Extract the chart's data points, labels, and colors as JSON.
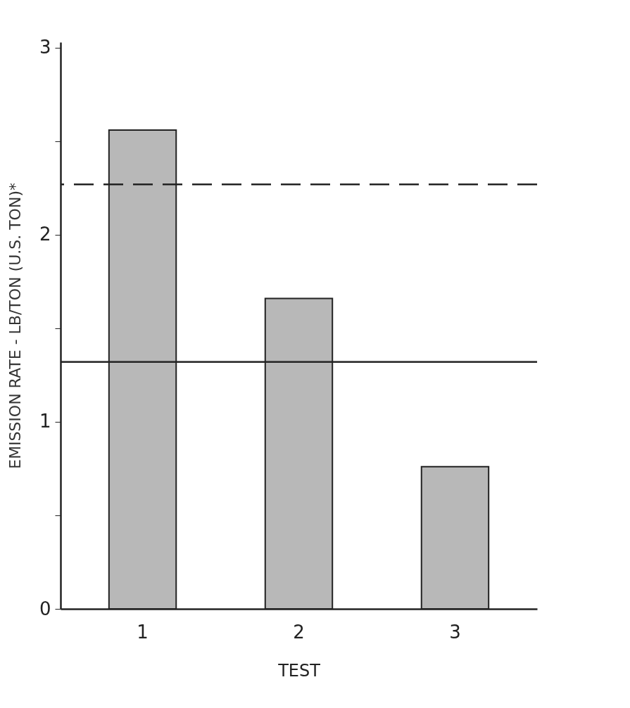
{
  "chart_data": {
    "type": "bar",
    "xlabel": "TEST",
    "ylabel": "EMISSION RATE - LB/TON (U.S. TON)*",
    "categories": [
      "1",
      "2",
      "3"
    ],
    "values": [
      2.56,
      1.66,
      0.76
    ],
    "color": "#b8b8b8",
    "ylim": [
      0,
      3.03
    ],
    "yticks": [
      0,
      {
        "value": 0.5,
        "label": null
      },
      1,
      {
        "value": 1.5,
        "label": null
      },
      2,
      {
        "value": 2.5,
        "label": null
      },
      3
    ],
    "ref_lines": [
      {
        "axis": "y",
        "value": 2.27,
        "label": null,
        "line_style": "dashed"
      },
      {
        "axis": "y",
        "value": 1.32,
        "label": null,
        "line_style": "solid"
      }
    ],
    "grid": false
  }
}
